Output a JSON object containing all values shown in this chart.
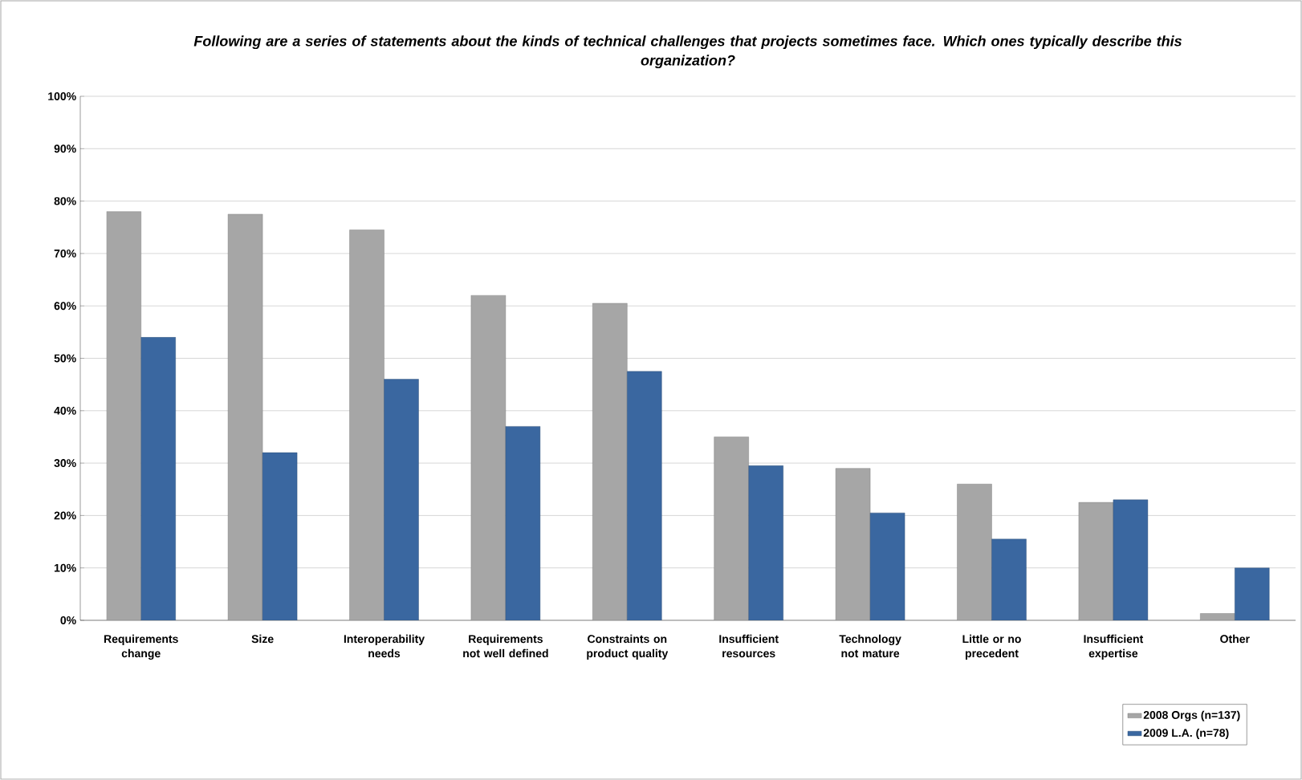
{
  "chart_data": {
    "type": "bar",
    "title": "Following are a series of statements about the kinds of technical challenges that projects sometimes face. Which ones typically describe this organization?",
    "categories": [
      "Requirements change",
      "Size",
      "Interoperability needs",
      "Requirements not well defined",
      "Constraints on product quality",
      "Insufficient resources",
      "Technology not mature",
      "Little or no precedent",
      "Insufficient expertise",
      "Other"
    ],
    "series": [
      {
        "name": "2008 Orgs (n=137)",
        "color": "#a6a6a6",
        "values": [
          78,
          77.5,
          74.5,
          62,
          60.5,
          35,
          29,
          26,
          22.5,
          1.3
        ]
      },
      {
        "name": "2009 L.A. (n=78)",
        "color": "#3a67a0",
        "values": [
          54,
          32,
          46,
          37,
          47.5,
          29.5,
          20.5,
          15.5,
          23,
          10
        ]
      }
    ],
    "ylim": [
      0,
      100
    ],
    "yticks": [
      {
        "value": 0,
        "label": "0%"
      },
      {
        "value": 10,
        "label": "10%"
      },
      {
        "value": 20,
        "label": "20%"
      },
      {
        "value": 30,
        "label": "30%"
      },
      {
        "value": 40,
        "label": "40%"
      },
      {
        "value": 50,
        "label": "50%"
      },
      {
        "value": 60,
        "label": "60%"
      },
      {
        "value": 70,
        "label": "70%"
      },
      {
        "value": 80,
        "label": "80%"
      },
      {
        "value": 90,
        "label": "90%"
      },
      {
        "value": 100,
        "label": "100%"
      }
    ],
    "grid": "y",
    "legend": "bottom right"
  }
}
